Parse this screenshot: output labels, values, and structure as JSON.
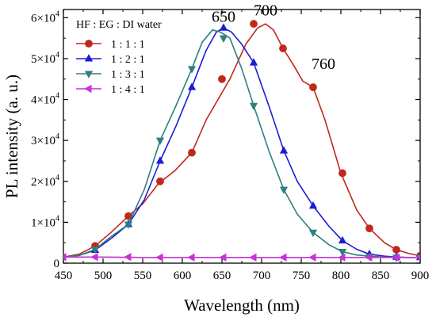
{
  "chart_data": {
    "type": "line",
    "xlabel": "Wavelength (nm)",
    "ylabel": "PL intensity (a. u.)",
    "xlim": [
      450,
      900
    ],
    "ylim": [
      0,
      62000
    ],
    "x_ticks": [
      450,
      500,
      550,
      600,
      650,
      700,
      750,
      800,
      850,
      900
    ],
    "x_tick_labels": [
      "450",
      "500",
      "550",
      "600",
      "650",
      "700",
      "750",
      "800",
      "850",
      "900"
    ],
    "y_ticks": [
      0,
      10000,
      20000,
      30000,
      40000,
      50000,
      60000
    ],
    "y_tick_labels": [
      {
        "base": "0",
        "exp": ""
      },
      {
        "base": "1×10",
        "exp": "4"
      },
      {
        "base": "2×10",
        "exp": "4"
      },
      {
        "base": "3×10",
        "exp": "4"
      },
      {
        "base": "4×10",
        "exp": "4"
      },
      {
        "base": "5×10",
        "exp": "4"
      },
      {
        "base": "6×10",
        "exp": "4"
      }
    ],
    "legend_title": "HF : EG : DI water",
    "legend_position": "top-left",
    "annotations": [
      {
        "text": "650",
        "x": 652,
        "y": 59000
      },
      {
        "text": "700",
        "x": 705,
        "y": 60500
      },
      {
        "text": "760",
        "x": 778,
        "y": 47500
      }
    ],
    "series": [
      {
        "name": "1 : 1 : 1",
        "color": "#c0281e",
        "marker": "circle",
        "x": [
          450,
          470,
          490,
          510,
          532,
          550,
          570,
          590,
          612,
          630,
          660,
          680,
          695,
          705,
          715,
          727,
          740,
          752,
          765,
          780,
          800,
          820,
          836,
          855,
          870,
          885,
          900
        ],
        "y": [
          1500,
          2200,
          4200,
          7500,
          11500,
          14500,
          19500,
          22500,
          27000,
          35000,
          45000,
          53500,
          57500,
          58500,
          57000,
          52500,
          48500,
          44500,
          43000,
          35000,
          22000,
          13000,
          8500,
          5000,
          3300,
          2400,
          1800
        ],
        "marker_x": [
          490,
          532,
          572,
          612,
          650,
          690,
          727,
          765,
          802,
          836,
          870,
          900
        ],
        "marker_y": [
          4200,
          11500,
          20000,
          27000,
          45000,
          58500,
          52500,
          43000,
          22000,
          8500,
          3300,
          1800
        ]
      },
      {
        "name": "1 : 2 : 1",
        "color": "#1c1cd8",
        "marker": "triangle-up",
        "x": [
          450,
          470,
          490,
          510,
          532,
          552,
          572,
          592,
          612,
          630,
          643,
          652,
          662,
          675,
          690,
          710,
          728,
          745,
          765,
          785,
          802,
          820,
          836,
          855,
          870,
          885,
          900
        ],
        "y": [
          1500,
          1900,
          3200,
          6000,
          9500,
          15500,
          25000,
          33500,
          43000,
          52000,
          56500,
          57500,
          56500,
          53500,
          49000,
          38000,
          27500,
          20000,
          14000,
          9000,
          5500,
          3400,
          2200,
          1700,
          1500,
          1400,
          1400
        ],
        "marker_x": [
          490,
          532,
          572,
          612,
          652,
          690,
          728,
          765,
          802,
          836,
          870,
          900
        ],
        "marker_y": [
          3200,
          9500,
          25000,
          43000,
          57500,
          49000,
          27500,
          14000,
          5500,
          2200,
          1500,
          1400
        ]
      },
      {
        "name": "1 : 3 : 1",
        "color": "#2e7f80",
        "marker": "triangle-down",
        "x": [
          450,
          470,
          490,
          510,
          532,
          552,
          572,
          592,
          612,
          625,
          638,
          648,
          660,
          675,
          690,
          710,
          728,
          745,
          765,
          785,
          802,
          820,
          836,
          855,
          870,
          885,
          900
        ],
        "y": [
          1500,
          1900,
          3400,
          6500,
          9500,
          18000,
          30000,
          38500,
          47500,
          54000,
          57000,
          56500,
          55000,
          47500,
          38500,
          27000,
          18000,
          12000,
          7500,
          4500,
          2800,
          2000,
          1700,
          1500,
          1400,
          1400,
          1400
        ],
        "marker_x": [
          490,
          532,
          572,
          612,
          652,
          690,
          728,
          765,
          802,
          836,
          870,
          900
        ],
        "marker_y": [
          3400,
          9500,
          30000,
          47500,
          55000,
          38500,
          18000,
          7500,
          2800,
          1700,
          1400,
          1400
        ]
      },
      {
        "name": "1 : 4 : 1",
        "color": "#c832d2",
        "marker": "triangle-left",
        "x": [
          450,
          500,
          550,
          600,
          650,
          700,
          750,
          800,
          850,
          900
        ],
        "y": [
          1500,
          1500,
          1400,
          1400,
          1400,
          1400,
          1400,
          1400,
          1400,
          1400
        ],
        "marker_x": [
          450,
          490,
          532,
          572,
          612,
          652,
          690,
          728,
          765,
          802,
          836,
          870,
          900
        ],
        "marker_y": [
          1500,
          1500,
          1500,
          1400,
          1400,
          1400,
          1400,
          1400,
          1400,
          1400,
          1400,
          1400,
          1400
        ]
      }
    ]
  }
}
